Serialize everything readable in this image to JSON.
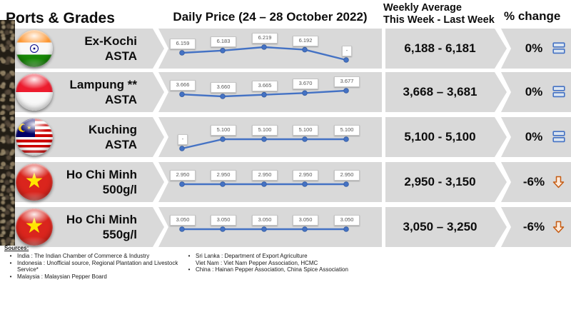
{
  "header": {
    "ports_grades": "Ports & Grades",
    "daily_price": "Daily Price (24 – 28 October 2022)",
    "weekly_avg_line1": "Weekly Average",
    "weekly_avg_line2": "This Week - Last Week",
    "pct_change": "% change"
  },
  "colors": {
    "band_gray": "#d9d9d9",
    "line_blue": "#4472c4",
    "marker_edge": "#3a62a8",
    "equal_icon_blue": "#4472c4",
    "equal_icon_fill": "#dbe5f1",
    "down_arrow_orange": "#c55a11",
    "down_arrow_fill": "#fdeada"
  },
  "rows": [
    {
      "port": "Ex-Kochi",
      "grade": "ASTA",
      "flag": "india",
      "weekly": "6,188 - 6,181",
      "pct": "0%",
      "trend": "equal"
    },
    {
      "port": "Lampung **",
      "grade": "ASTA",
      "flag": "indonesia",
      "weekly": "3,668 – 3,681",
      "pct": "0%",
      "trend": "equal"
    },
    {
      "port": "Kuching",
      "grade": "ASTA",
      "flag": "malaysia",
      "weekly": "5,100 - 5,100",
      "pct": "0%",
      "trend": "equal"
    },
    {
      "port": "Ho Chi Minh",
      "grade": "500g/l",
      "flag": "vietnam",
      "weekly": "2,950 - 3,150",
      "pct": "-6%",
      "trend": "down"
    },
    {
      "port": "Ho Chi Minh",
      "grade": "550g/l",
      "flag": "vietnam",
      "weekly": "3,050 – 3,250",
      "pct": "-6%",
      "trend": "down"
    }
  ],
  "chart_data": [
    {
      "type": "line",
      "name": "Ex-Kochi ASTA daily price",
      "point_labels": [
        "6.159",
        "6.183",
        "6.219",
        "6.192",
        "-"
      ],
      "values": [
        6.159,
        6.183,
        6.219,
        6.192,
        null
      ]
    },
    {
      "type": "line",
      "name": "Lampung ** ASTA daily price",
      "point_labels": [
        "3.666",
        "3.660",
        "3.665",
        "3.670",
        "3.677"
      ],
      "values": [
        3.666,
        3.66,
        3.665,
        3.67,
        3.677
      ]
    },
    {
      "type": "line",
      "name": "Kuching ASTA daily price",
      "point_labels": [
        "-",
        "5.100",
        "5.100",
        "5.100",
        "5.100"
      ],
      "values": [
        null,
        5.1,
        5.1,
        5.1,
        5.1
      ]
    },
    {
      "type": "line",
      "name": "Ho Chi Minh 500g/l daily price",
      "point_labels": [
        "2.950",
        "2.950",
        "2.950",
        "2.950",
        "2.950"
      ],
      "values": [
        2.95,
        2.95,
        2.95,
        2.95,
        2.95
      ]
    },
    {
      "type": "line",
      "name": "Ho Chi Minh 550g/l daily price",
      "point_labels": [
        "3.050",
        "3.050",
        "3.050",
        "3.050",
        "3.050"
      ],
      "values": [
        3.05,
        3.05,
        3.05,
        3.05,
        3.05
      ]
    }
  ],
  "sources": {
    "title": "Sources:",
    "col1": [
      {
        "bullet": true,
        "text": "India : The Indian Chamber of Commerce & Industry"
      },
      {
        "bullet": true,
        "text": "Indonesia : Unofficial source, Regional Plantation and Livestock Service*"
      },
      {
        "bullet": true,
        "text": "Malaysia : Malaysian Pepper Board"
      }
    ],
    "col2": [
      {
        "bullet": true,
        "text": "Sri Lanka : Department of Export Agriculture"
      },
      {
        "bullet": false,
        "text": "Viet Nam : Viet Nam Pepper Association, HCMC"
      },
      {
        "bullet": true,
        "text": "China : Hainan Pepper Association, China Spice Association"
      }
    ]
  }
}
